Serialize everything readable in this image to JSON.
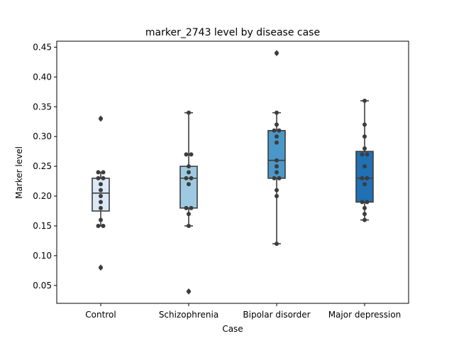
{
  "chart_data": {
    "type": "box",
    "title": "marker_2743 level by disease case",
    "xlabel": "Case",
    "ylabel": "Marker level",
    "ylim": [
      0.02,
      0.46
    ],
    "yticks": [
      "0.05",
      "0.10",
      "0.15",
      "0.20",
      "0.25",
      "0.30",
      "0.35",
      "0.40",
      "0.45"
    ],
    "categories": [
      "Control",
      "Schizophrenia",
      "Bipolar disorder",
      "Major depression"
    ],
    "box_colors": [
      "#dbe9f6",
      "#9ecae1",
      "#4a98c9",
      "#2070b4"
    ],
    "boxes": [
      {
        "q1": 0.175,
        "median": 0.205,
        "q3": 0.23,
        "whisker_low": 0.15,
        "whisker_high": 0.24,
        "outliers": [
          0.33,
          0.08
        ]
      },
      {
        "q1": 0.18,
        "median": 0.23,
        "q3": 0.25,
        "whisker_low": 0.15,
        "whisker_high": 0.34,
        "outliers": [
          0.04
        ]
      },
      {
        "q1": 0.23,
        "median": 0.26,
        "q3": 0.31,
        "whisker_low": 0.12,
        "whisker_high": 0.34,
        "outliers": [
          0.44
        ]
      },
      {
        "q1": 0.19,
        "median": 0.23,
        "q3": 0.275,
        "whisker_low": 0.16,
        "whisker_high": 0.36,
        "outliers": []
      }
    ],
    "points": [
      [
        0.33,
        0.24,
        0.24,
        0.23,
        0.23,
        0.22,
        0.21,
        0.2,
        0.19,
        0.18,
        0.16,
        0.15,
        0.15,
        0.08
      ],
      [
        0.34,
        0.27,
        0.27,
        0.25,
        0.24,
        0.23,
        0.23,
        0.22,
        0.18,
        0.18,
        0.17,
        0.15,
        0.04
      ],
      [
        0.44,
        0.34,
        0.32,
        0.31,
        0.31,
        0.3,
        0.29,
        0.26,
        0.25,
        0.24,
        0.23,
        0.23,
        0.21,
        0.2,
        0.12
      ],
      [
        0.36,
        0.32,
        0.3,
        0.28,
        0.27,
        0.27,
        0.25,
        0.23,
        0.23,
        0.22,
        0.19,
        0.19,
        0.18,
        0.17,
        0.16
      ]
    ]
  }
}
